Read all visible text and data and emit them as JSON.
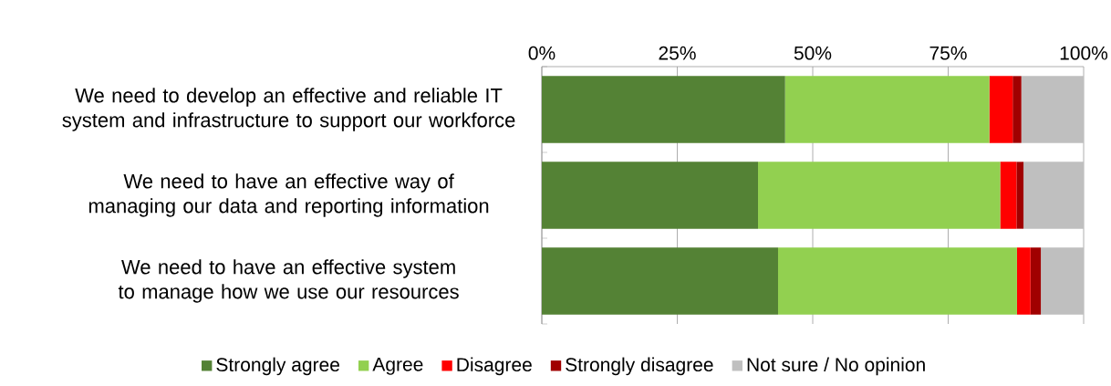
{
  "chart_data": {
    "type": "bar",
    "orientation": "horizontal",
    "stacked": true,
    "categories": [
      "We need to develop an effective and reliable IT system and infrastructure to support our workforce",
      "We need to have an effective way of managing our data and reporting information",
      "We need to have an effective system to manage how we use our resources"
    ],
    "series": [
      {
        "name": "Strongly agree",
        "color": "#548235",
        "values": [
          44.9,
          39.9,
          43.6
        ]
      },
      {
        "name": "Agree",
        "color": "#92d050",
        "values": [
          37.7,
          44.7,
          44.1
        ]
      },
      {
        "name": "Disagree",
        "color": "#ff0000",
        "values": [
          4.3,
          3.0,
          2.5
        ]
      },
      {
        "name": "Strongly disagree",
        "color": "#a00000",
        "values": [
          1.6,
          1.3,
          1.9
        ]
      },
      {
        "name": "Not sure / No opinion",
        "color": "#bfbfbf",
        "values": [
          11.5,
          11.1,
          7.9
        ]
      }
    ],
    "xlim": [
      0,
      100
    ],
    "xticks": [
      {
        "value": 0,
        "label": "0%"
      },
      {
        "value": 25,
        "label": "25%"
      },
      {
        "value": 50,
        "label": "50%"
      },
      {
        "value": 75,
        "label": "75%"
      },
      {
        "value": 100,
        "label": "100%"
      }
    ],
    "grid": "x",
    "legend": "bottom"
  }
}
